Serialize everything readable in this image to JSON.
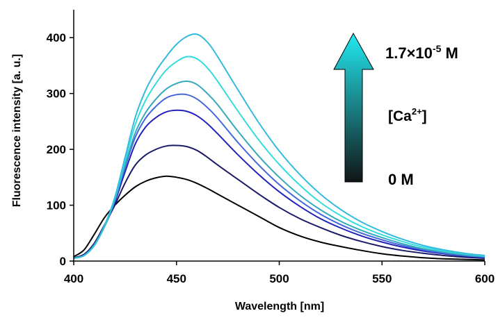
{
  "chart_data": {
    "type": "line",
    "title": "",
    "xlabel": "Wavelength [nm]",
    "ylabel": "Fluorescence intensity [a. u.]",
    "xlim": [
      400,
      600
    ],
    "ylim": [
      0,
      450
    ],
    "x_ticks": [
      "400",
      "450",
      "500",
      "550",
      "600"
    ],
    "y_ticks": [
      "0",
      "100",
      "200",
      "300",
      "400"
    ],
    "grid": false,
    "legend": "none",
    "x": [
      400,
      405,
      410,
      415,
      420,
      425,
      430,
      435,
      440,
      445,
      450,
      455,
      460,
      465,
      470,
      480,
      490,
      500,
      510,
      520,
      530,
      540,
      550,
      560,
      570,
      580,
      590,
      600
    ],
    "series": [
      {
        "color": "#000000",
        "values": [
          8,
          20,
          48,
          78,
          100,
          118,
          133,
          143,
          149,
          152,
          150,
          146,
          139,
          130,
          120,
          100,
          80,
          60,
          45,
          34,
          26,
          19,
          13,
          9,
          6,
          4,
          3,
          2
        ]
      },
      {
        "color": "#1a1a66",
        "values": [
          6,
          12,
          32,
          65,
          100,
          140,
          172,
          190,
          200,
          206,
          207,
          205,
          198,
          186,
          172,
          146,
          120,
          96,
          76,
          60,
          46,
          35,
          26,
          19,
          14,
          10,
          7,
          5
        ]
      },
      {
        "color": "#2222bb",
        "values": [
          5,
          10,
          28,
          62,
          105,
          160,
          210,
          240,
          257,
          267,
          270,
          268,
          260,
          246,
          228,
          190,
          155,
          124,
          98,
          76,
          59,
          45,
          34,
          25,
          18,
          13,
          9,
          6
        ]
      },
      {
        "color": "#4466dd",
        "values": [
          5,
          10,
          28,
          62,
          108,
          168,
          222,
          256,
          277,
          292,
          298,
          298,
          290,
          275,
          256,
          212,
          172,
          137,
          108,
          84,
          65,
          50,
          38,
          28,
          20,
          14,
          10,
          7
        ]
      },
      {
        "color": "#33aabb",
        "values": [
          5,
          10,
          28,
          62,
          110,
          172,
          230,
          266,
          290,
          308,
          318,
          322,
          316,
          300,
          280,
          232,
          188,
          150,
          118,
          92,
          71,
          55,
          42,
          31,
          22,
          16,
          11,
          8
        ]
      },
      {
        "color": "#33dddd",
        "values": [
          5,
          10,
          28,
          63,
          112,
          180,
          245,
          288,
          318,
          342,
          357,
          366,
          362,
          346,
          322,
          268,
          217,
          173,
          136,
          105,
          81,
          62,
          47,
          35,
          25,
          18,
          13,
          9
        ]
      },
      {
        "color": "#33bbdd",
        "values": [
          5,
          10,
          29,
          64,
          114,
          186,
          258,
          306,
          340,
          366,
          388,
          402,
          406,
          392,
          366,
          306,
          248,
          197,
          155,
          120,
          92,
          70,
          53,
          39,
          28,
          20,
          14,
          10
        ]
      }
    ]
  },
  "annotations": {
    "top_concentration": "1.7×10",
    "top_exponent": "-5",
    "top_unit": " M",
    "species_open": "[Ca",
    "species_charge": "2+",
    "species_close": "]",
    "bottom_concentration": "0 M"
  },
  "arrow": {
    "top_color": "#22e8f0",
    "bottom_color": "#101515"
  }
}
